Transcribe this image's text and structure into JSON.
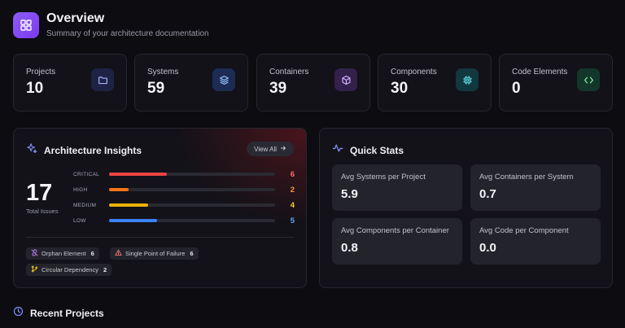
{
  "header": {
    "title": "Overview",
    "subtitle": "Summary of your architecture documentation",
    "icon": "dashboard-grid-icon",
    "accent": "#8b5cf6"
  },
  "stats": [
    {
      "label": "Projects",
      "value": "10",
      "icon": "folder-icon",
      "icon_bg": "#1e2245",
      "icon_color": "#a5b4fc"
    },
    {
      "label": "Systems",
      "value": "59",
      "icon": "layers-icon",
      "icon_bg": "#1c2c55",
      "icon_color": "#93c5fd"
    },
    {
      "label": "Containers",
      "value": "39",
      "icon": "box-icon",
      "icon_bg": "#33204d",
      "icon_color": "#d8b4fe"
    },
    {
      "label": "Components",
      "value": "30",
      "icon": "chip-icon",
      "icon_bg": "#10383e",
      "icon_color": "#67e8f9"
    },
    {
      "label": "Code Elements",
      "value": "0",
      "icon": "code-icon",
      "icon_bg": "#12362a",
      "icon_color": "#86efac"
    }
  ],
  "insights": {
    "title": "Architecture Insights",
    "view_all": "View All",
    "total": "17",
    "total_label": "Total Issues",
    "severity": [
      {
        "label": "CRITICAL",
        "count": "6",
        "fraction": 0.35,
        "color": "#ef4444",
        "count_color": "#f87171"
      },
      {
        "label": "HIGH",
        "count": "2",
        "fraction": 0.12,
        "color": "#f97316",
        "count_color": "#fb923c"
      },
      {
        "label": "MEDIUM",
        "count": "4",
        "fraction": 0.235,
        "color": "#eab308",
        "count_color": "#facc15"
      },
      {
        "label": "LOW",
        "count": "5",
        "fraction": 0.29,
        "color": "#3b82f6",
        "count_color": "#60a5fa"
      }
    ],
    "tags": [
      {
        "label": "Orphan Element",
        "count": "6",
        "icon": "unlink-icon"
      },
      {
        "label": "Single Point of Failure",
        "count": "6",
        "icon": "warning-triangle-icon"
      },
      {
        "label": "Circular Dependency",
        "count": "2",
        "icon": "branch-icon"
      }
    ]
  },
  "quick_stats": {
    "title": "Quick Stats",
    "items": [
      {
        "label": "Avg Systems per Project",
        "value": "5.9"
      },
      {
        "label": "Avg Containers per System",
        "value": "0.7"
      },
      {
        "label": "Avg Components per Container",
        "value": "0.8"
      },
      {
        "label": "Avg Code per Component",
        "value": "0.0"
      }
    ]
  },
  "recent": {
    "title": "Recent Projects"
  }
}
